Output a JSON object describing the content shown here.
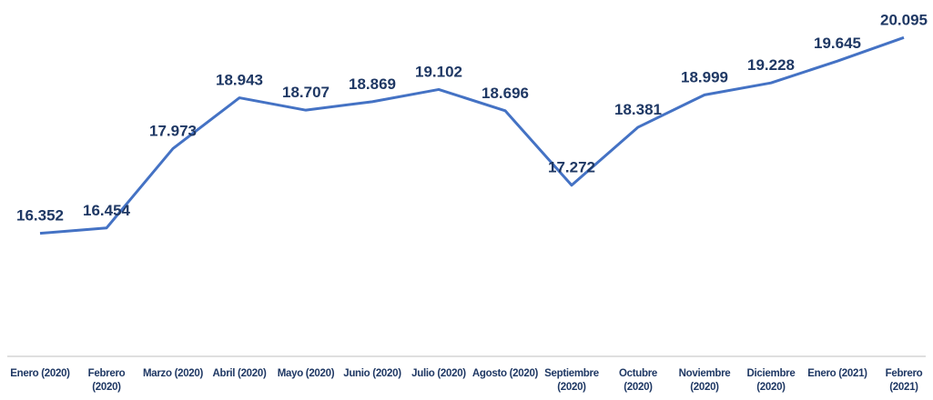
{
  "chart_data": {
    "type": "line",
    "categories": [
      "Enero (2020)",
      "Febrero (2020)",
      "Marzo (2020)",
      "Abril (2020)",
      "Mayo (2020)",
      "Junio (2020)",
      "Julio (2020)",
      "Agosto (2020)",
      "Septiembre (2020)",
      "Octubre (2020)",
      "Noviembre (2020)",
      "Diciembre (2020)",
      "Enero (2021)",
      "Febrero (2021)"
    ],
    "values": [
      16.352,
      16.454,
      17.973,
      18.943,
      18.707,
      18.869,
      19.102,
      18.696,
      17.272,
      18.381,
      18.999,
      19.228,
      19.645,
      20.095
    ],
    "color": "#4472c4",
    "ylim": [
      14,
      20.5
    ]
  }
}
